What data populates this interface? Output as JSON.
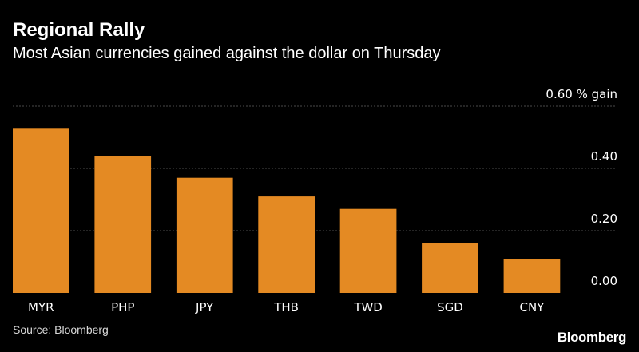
{
  "header": {
    "title": "Regional Rally",
    "subtitle": "Most Asian currencies gained against the dollar on Thursday"
  },
  "footer": {
    "source": "Source: Bloomberg",
    "brand": "Bloomberg"
  },
  "colors": {
    "background": "#000000",
    "bar": "#e48a23",
    "grid": "#4a4a4a",
    "text": "#ffffff"
  },
  "chart_data": {
    "type": "bar",
    "title": "Regional Rally",
    "subtitle": "Most Asian currencies gained against the dollar on Thursday",
    "categories": [
      "MYR",
      "PHP",
      "JPY",
      "THB",
      "TWD",
      "SGD",
      "CNY"
    ],
    "values": [
      0.53,
      0.44,
      0.37,
      0.31,
      0.27,
      0.16,
      0.11
    ],
    "ylim": [
      0,
      0.6
    ],
    "yticks": [
      0,
      0.2,
      0.4,
      0.6
    ],
    "ytick_labels": [
      "0.00",
      "0.20",
      "0.40",
      "0.60 % gain"
    ],
    "xlabel": "",
    "ylabel": "",
    "grid": true,
    "legend": "none"
  }
}
